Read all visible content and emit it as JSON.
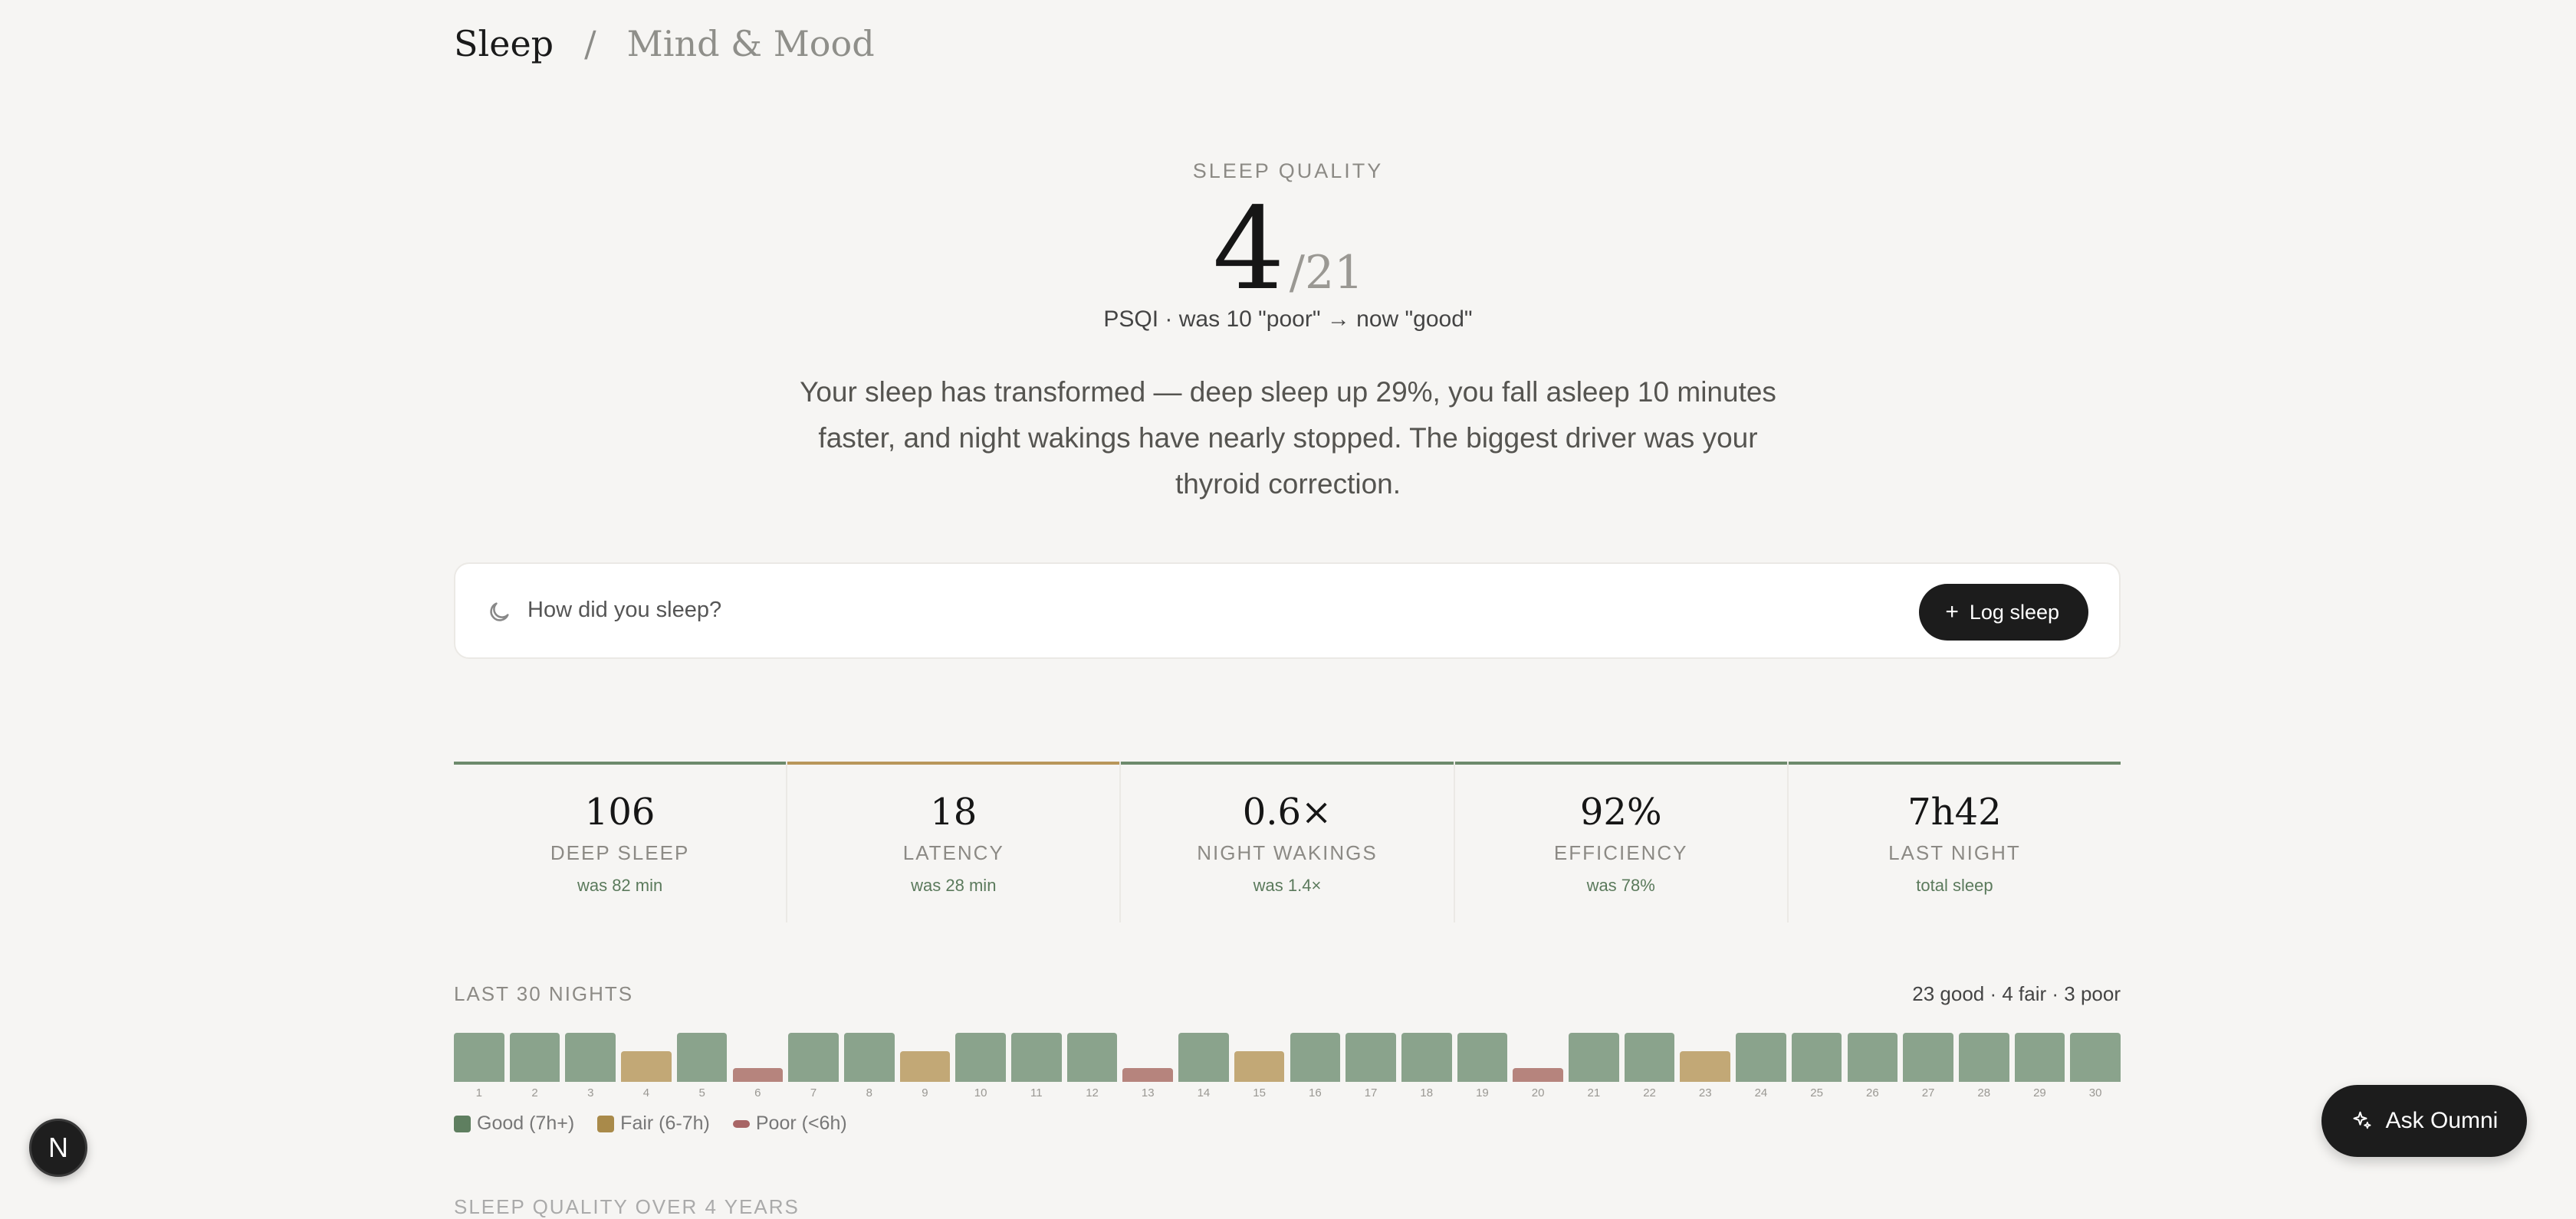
{
  "breadcrumb": {
    "current": "Sleep",
    "separator": "/",
    "next": "Mind & Mood"
  },
  "hero": {
    "eyebrow": "SLEEP QUALITY",
    "score": "4",
    "denominator": "/21",
    "psqi": "PSQI · was 10 \"poor\" → now \"good\"",
    "summary": "Your sleep has transformed — deep sleep up 29%, you fall asleep 10 minutes faster, and night wakings have nearly stopped. The biggest driver was your thyroid correction."
  },
  "log": {
    "prompt": "How did you sleep?",
    "button_label": "Log sleep",
    "icon": "moon-icon"
  },
  "metrics": [
    {
      "value": "106",
      "label": "DEEP SLEEP",
      "was": "was 82 min",
      "accent": "#6d8a6c"
    },
    {
      "value": "18",
      "label": "LATENCY",
      "was": "was 28 min",
      "accent": "#b8965a"
    },
    {
      "value": "0.6×",
      "label": "NIGHT WAKINGS",
      "was": "was 1.4×",
      "accent": "#6d8a6c"
    },
    {
      "value": "92%",
      "label": "EFFICIENCY",
      "was": "was 78%",
      "accent": "#6d8a6c"
    },
    {
      "value": "7h42",
      "label": "LAST NIGHT",
      "was": "total sleep",
      "accent": "#6d8a6c"
    }
  ],
  "nights": {
    "title": "LAST 30 NIGHTS",
    "counts": "23 good · 4 fair · 3 poor",
    "ratings": [
      "good",
      "good",
      "good",
      "fair",
      "good",
      "poor",
      "good",
      "good",
      "fair",
      "good",
      "good",
      "good",
      "poor",
      "good",
      "fair",
      "good",
      "good",
      "good",
      "good",
      "poor",
      "good",
      "good",
      "fair",
      "good",
      "good",
      "good",
      "good",
      "good",
      "good",
      "good"
    ],
    "labels": [
      "1",
      "2",
      "3",
      "4",
      "5",
      "6",
      "7",
      "8",
      "9",
      "10",
      "11",
      "12",
      "13",
      "14",
      "15",
      "16",
      "17",
      "18",
      "19",
      "20",
      "21",
      "22",
      "23",
      "24",
      "25",
      "26",
      "27",
      "28",
      "29",
      "30"
    ],
    "colors": {
      "good": "#8aa38c",
      "fair": "#c2a876",
      "poor": "#b6847d"
    },
    "legend": [
      {
        "key": "good",
        "label": "Good (7h+)",
        "color": "#5f7f60"
      },
      {
        "key": "fair",
        "label": "Fair (6-7h)",
        "color": "#a98a4a"
      },
      {
        "key": "poor",
        "label": "Poor (<6h)",
        "color": "#a86565"
      }
    ]
  },
  "next_section": "SLEEP QUALITY OVER 4 YEARS",
  "floating": {
    "badge": "N",
    "ask_label": "Ask Oumni",
    "ask_icon": "sparkle-icon"
  }
}
